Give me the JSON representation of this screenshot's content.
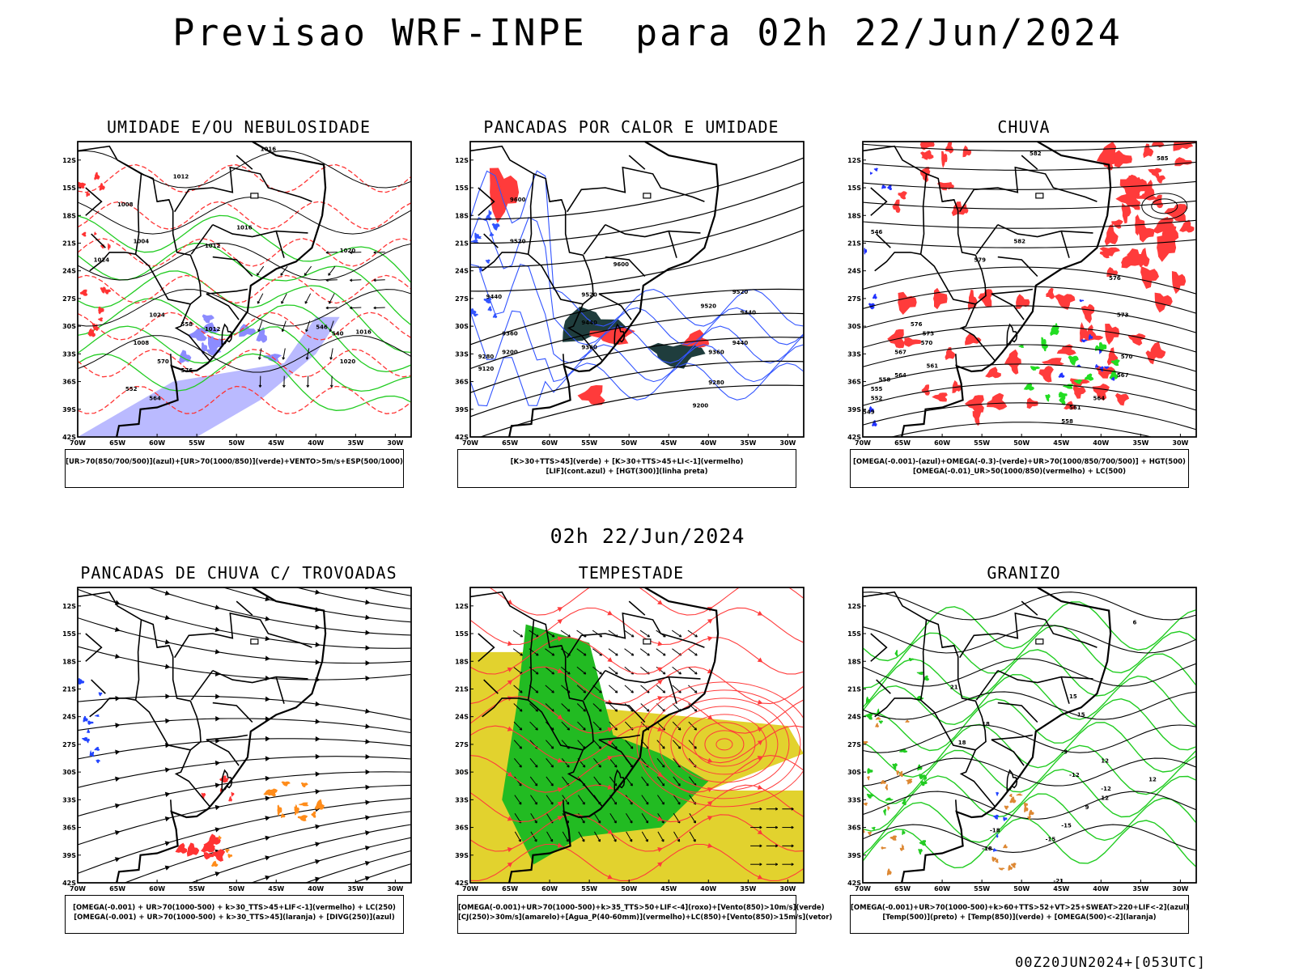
{
  "main_title": "Previsao WRF-INPE  para 02h 22/Jun/2024",
  "mid_title": "02h 22/Jun/2024",
  "footer": "00Z20JUN2024+[053UTC]",
  "lat_labels": [
    "12S",
    "15S",
    "18S",
    "21S",
    "24S",
    "27S",
    "30S",
    "33S",
    "36S",
    "39S",
    "42S"
  ],
  "lon_labels": [
    "70W",
    "65W",
    "60W",
    "55W",
    "50W",
    "45W",
    "40W",
    "35W",
    "30W"
  ],
  "panels": [
    {
      "title": "UMIDADE E/OU NEBULOSIDADE",
      "legend": [
        "[UR>70(850/700/500)](azul)+[UR>70(1000/850)](verde)+VENTO>5m/s+ESP(500/1000)"
      ],
      "contour_labels": [
        "1016",
        "1012",
        "1008",
        "1004",
        "1012",
        "1016",
        "1020",
        "1024",
        "570",
        "576",
        "564",
        "552",
        "546",
        "540",
        "1016",
        "1020",
        "1024",
        "558",
        "1012",
        "1008"
      ],
      "colors": {
        "blue": "#8c8cff",
        "green": "#22cc22",
        "red": "#ff3333"
      }
    },
    {
      "title": "PANCADAS POR CALOR E UMIDADE",
      "legend": [
        "[K>30+TTS>45](verde) + [K>30+TTS>45+LI<-1](vermelho)",
        "[LIF](cont.azul) + [HGT(300)](linha preta)"
      ],
      "contour_labels": [
        "9600",
        "9520",
        "9440",
        "9360",
        "9280",
        "9200",
        "9120",
        "9600",
        "9520",
        "9440",
        "9360",
        "9280",
        "9200",
        "9520",
        "9440",
        "9360",
        "9440",
        "9520"
      ],
      "colors": {
        "dark": "#1f3d3d",
        "red": "#ff3b3b",
        "blue": "#3355ff"
      }
    },
    {
      "title": "CHUVA",
      "legend": [
        "[OMEGA(-0.001)-(azul)+OMEGA(-0.3)-(verde)+UR>70(1000/850/700/500)] + HGT(500)",
        "[OMEGA(-0.01)_UR>50(1000/850)(vermelho) + LC(500)"
      ],
      "contour_labels": [
        "582",
        "585",
        "582",
        "579",
        "576",
        "573",
        "570",
        "567",
        "564",
        "561",
        "558",
        "555",
        "552",
        "549",
        "546",
        "576",
        "573",
        "570",
        "567",
        "564",
        "561",
        "558"
      ],
      "colors": {
        "red": "#ff3b3b",
        "green": "#22dd22",
        "blue": "#2233ff"
      }
    },
    {
      "title": "PANCADAS DE CHUVA C/ TROVOADAS",
      "legend": [
        "[OMEGA(-0.001) + UR>70(1000-500) + k>30_TTS>45+LIF<-1](vermelho) + LC(250)",
        "[OMEGA(-0.001) + UR>70(1000-500) + k>30_TTS>45](laranja) + [DIVG(250)](azul)"
      ],
      "colors": {
        "red": "#ff3333",
        "orange": "#ff8c1a",
        "blue": "#2244ff"
      }
    },
    {
      "title": "TEMPESTADE",
      "legend": [
        "[OMEGA(-0.001)+UR>70(1000-500)+k>35_TTS>50+LIF<-4](roxo)+[Vento(850)>10m/s](verde)",
        "[CJ(250)>30m/s](amarelo)+[Agua_P(40-60mm)](vermelho)+LC(850)+[Vento(850)>15m/s](vetor)"
      ],
      "colors": {
        "yellow": "#e2d22e",
        "green": "#22bb22",
        "red": "#ff3b3b"
      }
    },
    {
      "title": "GRANIZO",
      "legend": [
        "[OMEGA(-0.001)+UR>70(1000-500)+k>60+TTS>52+VT>25+SWEAT>220+LIF<-2](azul)",
        "[Temp(500)](preto) + [Temp(850)](verde) + [OMEGA(500)<-2](laranja)"
      ],
      "contour_labels": [
        "-18",
        "-21",
        "-15",
        "-12",
        "-9",
        "12",
        "15",
        "18",
        "21",
        "12",
        "9",
        "6",
        "-18",
        "-15",
        "-12",
        "12",
        "15",
        "18"
      ],
      "colors": {
        "green": "#22cc22",
        "orange": "#dd8833",
        "blue": "#2244ff"
      }
    }
  ]
}
